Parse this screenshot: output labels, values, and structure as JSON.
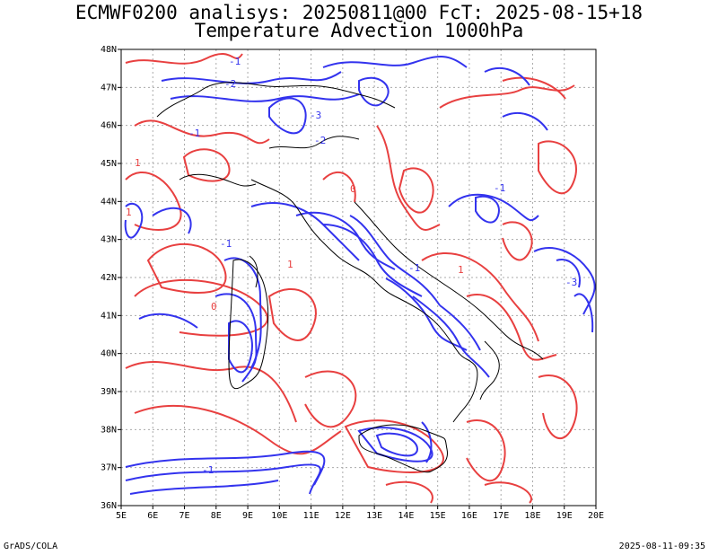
{
  "header": {
    "title_line1": "ECMWF0200 analisys: 20250811@00 FcT: 2025-08-15+18",
    "title_line2": "Temperature Advection 1000hPa"
  },
  "map": {
    "lon_labels": [
      "5E",
      "6E",
      "7E",
      "8E",
      "9E",
      "10E",
      "11E",
      "12E",
      "13E",
      "14E",
      "15E",
      "16E",
      "17E",
      "18E",
      "19E",
      "20E"
    ],
    "lat_labels": [
      "36N",
      "37N",
      "38N",
      "39N",
      "40N",
      "41N",
      "42N",
      "43N",
      "44N",
      "45N",
      "46N",
      "47N",
      "48N"
    ],
    "contour_labels": [
      "-1",
      "-2",
      "-3",
      "-1",
      "-2",
      "-1",
      "1",
      "1",
      "0",
      "-1",
      "1",
      "0",
      "1",
      "-1",
      "-3",
      "-1"
    ],
    "colors": {
      "negative": "#3333ee",
      "positive": "#e84040",
      "coast": "#000000",
      "grid": "#aaaaaa"
    }
  },
  "footer": {
    "left": "GrADS/COLA",
    "right": "2025-08-11-09:35"
  }
}
